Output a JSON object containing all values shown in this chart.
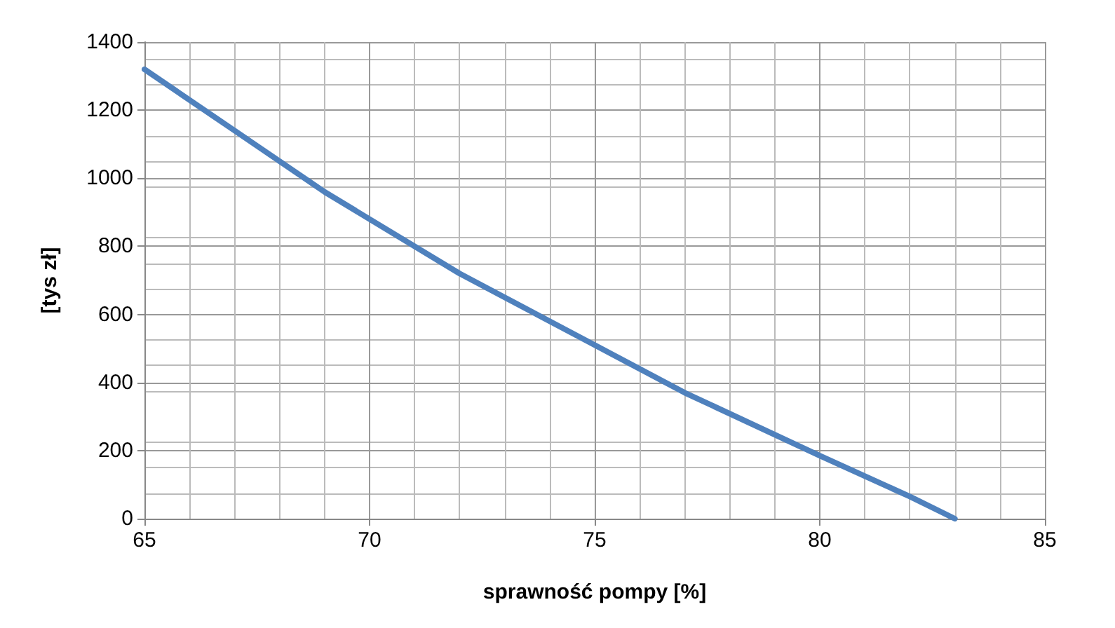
{
  "chart_data": {
    "type": "line",
    "xlabel": "sprawność pompy [%]",
    "ylabel": "[tys zł]",
    "x": [
      65,
      67,
      69,
      70,
      72,
      75,
      77,
      80,
      82,
      83
    ],
    "series": [
      {
        "color": "#4f81bd",
        "values": [
          1320,
          1140,
          960,
          880,
          720,
          510,
          370,
          185,
          65,
          0
        ]
      }
    ],
    "xlim": [
      65,
      85
    ],
    "xticks": [
      65,
      70,
      75,
      80,
      85
    ],
    "ylim": [
      0,
      1400
    ],
    "yticks": [
      0,
      200,
      400,
      600,
      800,
      1000,
      1200,
      1400
    ],
    "grid": true,
    "marker": "none",
    "line_style": "solid"
  }
}
